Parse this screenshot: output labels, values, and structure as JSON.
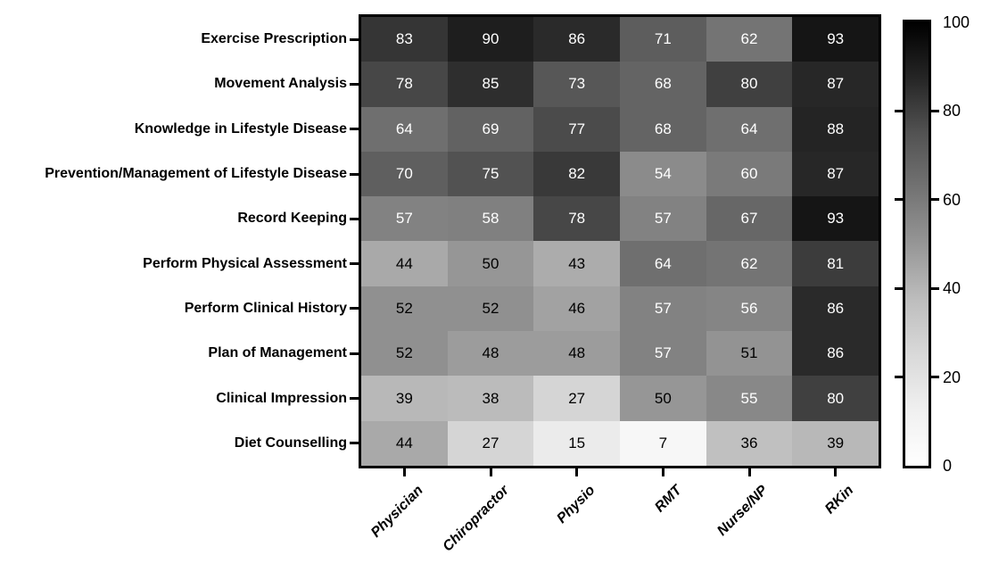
{
  "chart_data": {
    "type": "heatmap",
    "title": "",
    "rows": [
      "Exercise Prescription",
      "Movement Analysis",
      "Knowledge in Lifestyle Disease",
      "Prevention/Management of Lifestyle Disease",
      "Record Keeping",
      "Perform Physical Assessment",
      "Perform Clinical History",
      "Plan of Management",
      "Clinical Impression",
      "Diet Counselling"
    ],
    "columns": [
      "Physician",
      "Chiropractor",
      "Physio",
      "RMT",
      "Nurse/NP",
      "RKin"
    ],
    "values": [
      [
        83,
        90,
        86,
        71,
        62,
        93
      ],
      [
        78,
        85,
        73,
        68,
        80,
        87
      ],
      [
        64,
        69,
        77,
        68,
        64,
        88
      ],
      [
        70,
        75,
        82,
        54,
        60,
        87
      ],
      [
        57,
        58,
        78,
        57,
        67,
        93
      ],
      [
        44,
        50,
        43,
        64,
        62,
        81
      ],
      [
        52,
        52,
        46,
        57,
        56,
        86
      ],
      [
        52,
        48,
        48,
        57,
        51,
        86
      ],
      [
        39,
        38,
        27,
        50,
        55,
        80
      ],
      [
        44,
        27,
        15,
        7,
        36,
        39
      ]
    ],
    "colorbar": {
      "min": 0,
      "max": 100,
      "ticks": [
        100,
        80,
        60,
        40,
        20,
        0
      ],
      "minor_tick_values": [
        80,
        60,
        40,
        20
      ],
      "colormap": "greys (0=white, 100=black)",
      "position": "right"
    },
    "style": {
      "grid": false,
      "cell_text_light": "#ffffff",
      "cell_text_dark": "#000000",
      "axis_color": "#000000",
      "background": "#ffffff",
      "legend": "none"
    }
  }
}
